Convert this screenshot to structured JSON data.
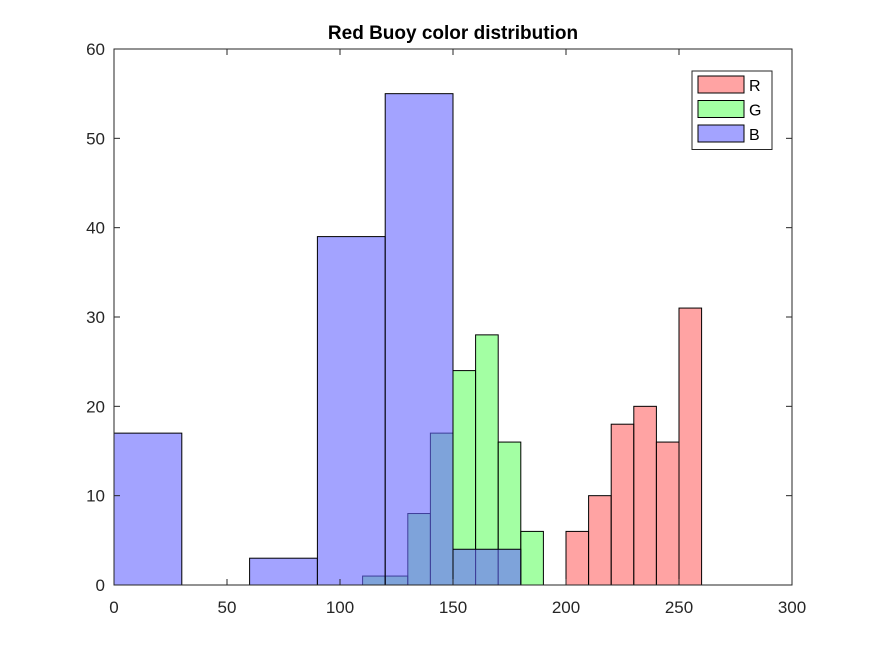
{
  "chart_data": {
    "type": "bar",
    "title": "Red Buoy color distribution",
    "xlabel": "",
    "ylabel": "",
    "xlim": [
      0,
      300
    ],
    "ylim": [
      0,
      60
    ],
    "xticks": [
      "0",
      "50",
      "100",
      "150",
      "200",
      "250",
      "300"
    ],
    "yticks": [
      "0",
      "10",
      "20",
      "30",
      "40",
      "50",
      "60"
    ],
    "grid": false,
    "legend_position": "top-right",
    "series": [
      {
        "name": "R",
        "color": "#ff6666",
        "bins": [
          {
            "start": 200,
            "end": 210,
            "count": 6
          },
          {
            "start": 210,
            "end": 220,
            "count": 10
          },
          {
            "start": 220,
            "end": 230,
            "count": 18
          },
          {
            "start": 230,
            "end": 240,
            "count": 20
          },
          {
            "start": 240,
            "end": 250,
            "count": 16
          },
          {
            "start": 250,
            "end": 260,
            "count": 31
          }
        ]
      },
      {
        "name": "G",
        "color": "#66ff66",
        "bins": [
          {
            "start": 110,
            "end": 120,
            "count": 1
          },
          {
            "start": 120,
            "end": 130,
            "count": 1
          },
          {
            "start": 130,
            "end": 140,
            "count": 8
          },
          {
            "start": 140,
            "end": 150,
            "count": 17
          },
          {
            "start": 150,
            "end": 160,
            "count": 24
          },
          {
            "start": 160,
            "end": 170,
            "count": 28
          },
          {
            "start": 170,
            "end": 180,
            "count": 16
          },
          {
            "start": 180,
            "end": 190,
            "count": 6
          }
        ]
      },
      {
        "name": "B",
        "color": "#6666ff",
        "bins": [
          {
            "start": 0,
            "end": 30,
            "count": 17
          },
          {
            "start": 60,
            "end": 90,
            "count": 3
          },
          {
            "start": 90,
            "end": 120,
            "count": 39
          },
          {
            "start": 120,
            "end": 150,
            "count": 55
          },
          {
            "start": 150,
            "end": 180,
            "count": 4
          }
        ]
      }
    ]
  }
}
